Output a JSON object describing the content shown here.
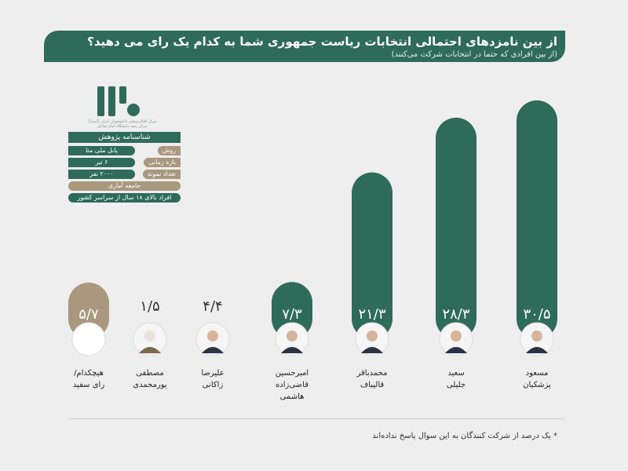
{
  "header": {
    "title": "از بین نامزدهای احتمالی انتخابات ریاست جمهوری شما به کدام یک رای می دهید؟",
    "subtitle": "(از بین افرادی که حتما در انتخابات شرکت می‌کنند)"
  },
  "logo": {
    "caption_line1": "مرکز افکارسنجی دانشجویان ایران (ایسپا)",
    "caption_line2": "مرکز رصد دانشگاه امام صادق"
  },
  "research_profile": {
    "title": "شناسنامه پژوهش",
    "rows": [
      {
        "label": "روش",
        "value": "پانل ملی متا"
      },
      {
        "label": "بازه زمانی",
        "value": "۶ تیر"
      },
      {
        "label": "تعداد نمونه",
        "value": "۲۰۰۰ نفر"
      }
    ],
    "population_label": "جامعه آماری",
    "population_value": "افراد بالای ۱۸ سال از سراسر کشور"
  },
  "colors": {
    "bar_green": "#2e6b58",
    "bar_tan": "#a9977e",
    "background": "#eeeeee"
  },
  "chart_data": {
    "type": "bar",
    "categories": [
      "مسعود پزشکیان",
      "سعید جلیلی",
      "محمدباقر قالیباف",
      "امیرحسین قاضی‌زاده هاشمی",
      "علیرضا زاکانی",
      "مصطفی پورمحمدی",
      "هیچکدام/ رای سفید"
    ],
    "category_lines": [
      [
        "مسعود",
        "پزشکیان"
      ],
      [
        "سعید",
        "جلیلی"
      ],
      [
        "محمدباقر",
        "قالیباف"
      ],
      [
        "امیرحسین",
        "قاضی‌زاده",
        "هاشمی"
      ],
      [
        "علیرضا",
        "زاکانی"
      ],
      [
        "مصطفی",
        "پورمحمدی"
      ],
      [
        "هیچکدام/",
        "رای سفید"
      ]
    ],
    "values": [
      30.5,
      28.3,
      21.3,
      7.3,
      4.4,
      1.5,
      5.7
    ],
    "value_labels": [
      "۳۰/۵",
      "۲۸/۳",
      "۲۱/۳",
      "۷/۳",
      "۴/۴",
      "۱/۵",
      "۵/۷"
    ],
    "bar_colors": [
      "#2e6b58",
      "#2e6b58",
      "#2e6b58",
      "#2e6b58",
      "#2e6b58",
      "#a9977e",
      "#a9977e"
    ],
    "avatars": [
      "person",
      "person",
      "person",
      "person",
      "person",
      "cleric",
      "blank"
    ],
    "ylim": [
      0,
      33
    ],
    "title": "",
    "xlabel": "",
    "ylabel": ""
  },
  "footnote": "* یک درصد از شرکت کنندگان به این سوال پاسخ نداده‌اند"
}
